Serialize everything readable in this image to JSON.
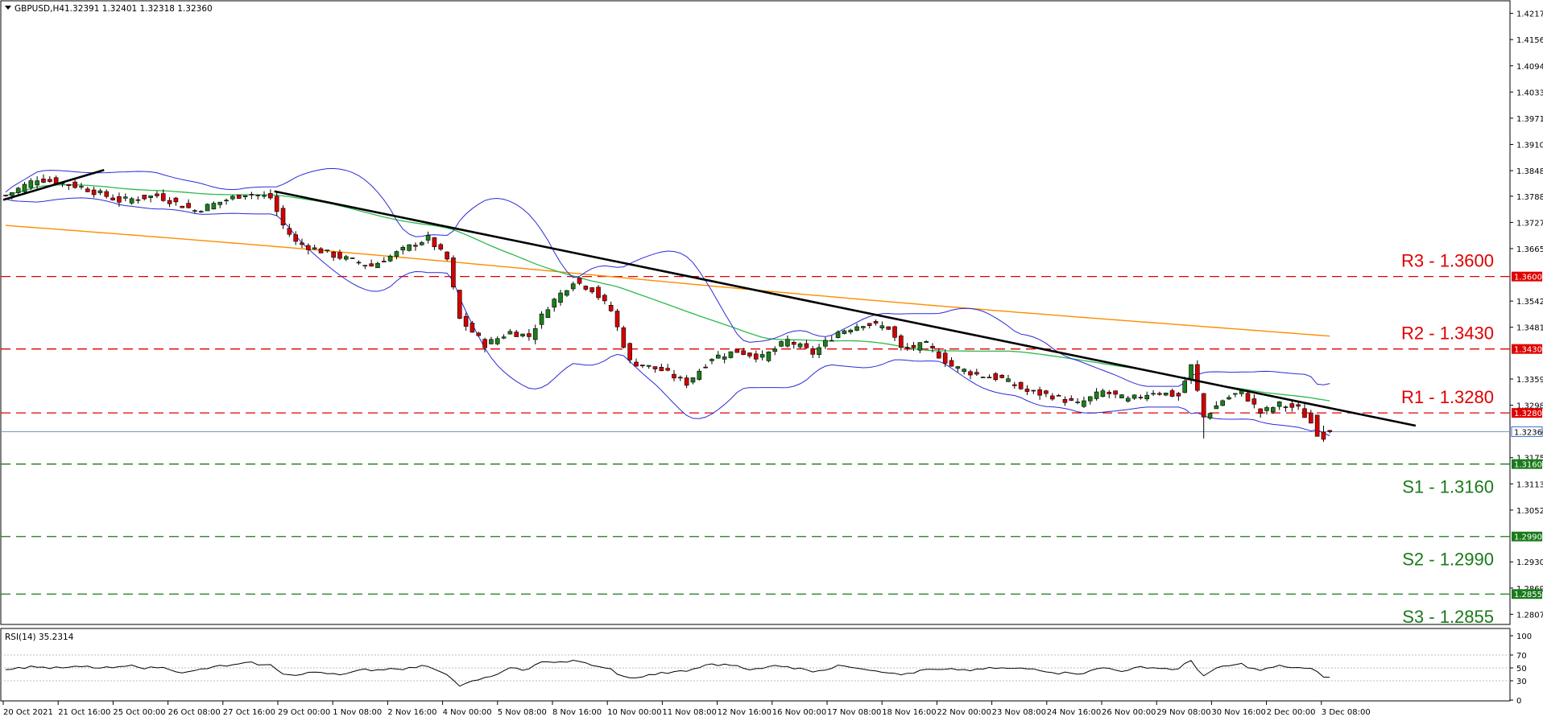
{
  "header": {
    "symbol": "GBPUSD,H4",
    "ohlc": "1.32391 1.32401 1.32318 1.32360"
  },
  "rsi_label": "RSI(14) 35.2314",
  "colors": {
    "bull": "#1b7f1b",
    "bear": "#d40000",
    "resistance": "#e00000",
    "support": "#1a7a1a",
    "ma_long": "#ff8c00",
    "ma_short": "#2db94d",
    "bands": "#2b2bd8",
    "current": "#3a6fcf"
  },
  "chart_data": [
    {
      "type": "candlestick",
      "title": "GBPUSD,H4",
      "y_ticks": [
        "1.42175",
        "1.41560",
        "1.40945",
        "1.40330",
        "1.39715",
        "1.39100",
        "1.38485",
        "1.37885",
        "1.37270",
        "1.36655",
        "1.36000",
        "1.35425",
        "1.34810",
        "1.34300",
        "1.33595",
        "1.32980",
        "1.32800",
        "1.32360",
        "1.31750",
        "1.31600",
        "1.31135",
        "1.30520",
        "1.29900",
        "1.29305",
        "1.28690",
        "1.28550",
        "1.28075"
      ],
      "ylim": [
        1.2795,
        1.423
      ],
      "current_price": "1.32360",
      "levels": [
        {
          "id": "R3",
          "label": "R3 - 1.3600",
          "value": 1.36,
          "tag": "1.36000",
          "kind": "resistance"
        },
        {
          "id": "R2",
          "label": "R2 - 1.3430",
          "value": 1.343,
          "tag": "1.34300",
          "kind": "resistance"
        },
        {
          "id": "R1",
          "label": "R1 - 1.3280",
          "value": 1.328,
          "tag": "1.32800",
          "kind": "resistance"
        },
        {
          "id": "S1",
          "label": "S1 - 1.3160",
          "value": 1.316,
          "tag": "1.31600",
          "kind": "support"
        },
        {
          "id": "S2",
          "label": "S2 - 1.2990",
          "value": 1.299,
          "tag": "1.29900",
          "kind": "support"
        },
        {
          "id": "S3",
          "label": "S3 - 1.2855",
          "value": 1.2855,
          "tag": "1.28550",
          "kind": "support"
        }
      ],
      "x_labels": [
        "20 Oct 2021",
        "21 Oct 16:00",
        "25 Oct 00:00",
        "26 Oct 08:00",
        "27 Oct 16:00",
        "29 Oct 00:00",
        "1 Nov 08:00",
        "2 Nov 16:00",
        "4 Nov 00:00",
        "5 Nov 08:00",
        "8 Nov 16:00",
        "10 Nov 00:00",
        "11 Nov 08:00",
        "12 Nov 16:00",
        "16 Nov 00:00",
        "17 Nov 08:00",
        "18 Nov 16:00",
        "22 Nov 00:00",
        "23 Nov 08:00",
        "24 Nov 16:00",
        "26 Nov 00:00",
        "29 Nov 08:00",
        "30 Nov 16:00",
        "2 Dec 00:00",
        "3 Dec 08:00"
      ],
      "close_anchors": [
        {
          "bar": 0,
          "close": 1.379
        },
        {
          "bar": 5,
          "close": 1.383
        },
        {
          "bar": 12,
          "close": 1.381
        },
        {
          "bar": 18,
          "close": 1.3778
        },
        {
          "bar": 24,
          "close": 1.379
        },
        {
          "bar": 30,
          "close": 1.3755
        },
        {
          "bar": 38,
          "close": 1.3795
        },
        {
          "bar": 42,
          "close": 1.3785
        },
        {
          "bar": 44,
          "close": 1.372
        },
        {
          "bar": 46,
          "close": 1.368
        },
        {
          "bar": 52,
          "close": 1.365
        },
        {
          "bar": 58,
          "close": 1.3625
        },
        {
          "bar": 64,
          "close": 1.367
        },
        {
          "bar": 67,
          "close": 1.369
        },
        {
          "bar": 70,
          "close": 1.364
        },
        {
          "bar": 72,
          "close": 1.35
        },
        {
          "bar": 76,
          "close": 1.344
        },
        {
          "bar": 80,
          "close": 1.347
        },
        {
          "bar": 83,
          "close": 1.346
        },
        {
          "bar": 86,
          "close": 1.353
        },
        {
          "bar": 90,
          "close": 1.359
        },
        {
          "bar": 93,
          "close": 1.357
        },
        {
          "bar": 96,
          "close": 1.352
        },
        {
          "bar": 99,
          "close": 1.34
        },
        {
          "bar": 104,
          "close": 1.338
        },
        {
          "bar": 108,
          "close": 1.335
        },
        {
          "bar": 112,
          "close": 1.341
        },
        {
          "bar": 116,
          "close": 1.3425
        },
        {
          "bar": 120,
          "close": 1.341
        },
        {
          "bar": 124,
          "close": 1.345
        },
        {
          "bar": 128,
          "close": 1.342
        },
        {
          "bar": 132,
          "close": 1.347
        },
        {
          "bar": 136,
          "close": 1.349
        },
        {
          "bar": 140,
          "close": 1.348
        },
        {
          "bar": 142,
          "close": 1.343
        },
        {
          "bar": 146,
          "close": 1.344
        },
        {
          "bar": 150,
          "close": 1.339
        },
        {
          "bar": 154,
          "close": 1.337
        },
        {
          "bar": 158,
          "close": 1.336
        },
        {
          "bar": 162,
          "close": 1.333
        },
        {
          "bar": 166,
          "close": 1.332
        },
        {
          "bar": 170,
          "close": 1.33
        },
        {
          "bar": 174,
          "close": 1.333
        },
        {
          "bar": 178,
          "close": 1.331
        },
        {
          "bar": 182,
          "close": 1.333
        },
        {
          "bar": 186,
          "close": 1.332
        },
        {
          "bar": 188,
          "close": 1.339
        },
        {
          "bar": 190,
          "close": 1.327
        },
        {
          "bar": 193,
          "close": 1.331
        },
        {
          "bar": 196,
          "close": 1.333
        },
        {
          "bar": 199,
          "close": 1.328
        },
        {
          "bar": 202,
          "close": 1.33
        },
        {
          "bar": 205,
          "close": 1.329
        },
        {
          "bar": 208,
          "close": 1.324
        },
        {
          "bar": 210,
          "close": 1.3236
        }
      ],
      "trendlines": [
        {
          "from": {
            "bar": 0,
            "price": 1.378
          },
          "to": {
            "bar": 16,
            "price": 1.385
          }
        },
        {
          "from": {
            "bar": 43,
            "price": 1.38
          },
          "to": {
            "bar": 224,
            "price": 1.325
          }
        }
      ]
    },
    {
      "type": "line",
      "title": "RSI(14) 35.2314",
      "ylim": [
        0,
        100
      ],
      "y_ticks": [
        "100",
        "70",
        "50",
        "30",
        "0"
      ],
      "value": 35.2314
    }
  ]
}
